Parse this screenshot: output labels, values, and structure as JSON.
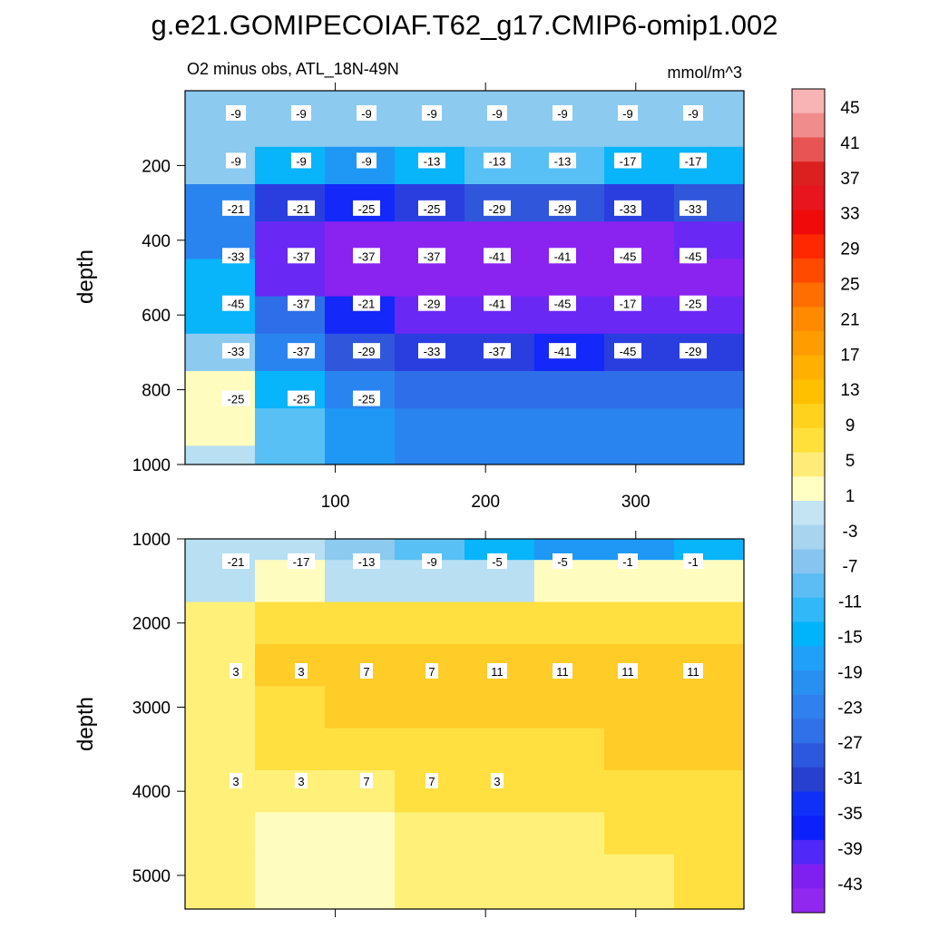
{
  "title": "g.e21.GOMIPECOIAF.T62_g17.CMIP6-omip1.002",
  "chart_data": [
    {
      "type": "heatmap",
      "subtitle": "O2 minus obs, ATL_18N-49N",
      "units": "mmol/m^3",
      "ylabel": "depth",
      "xlabel": "",
      "xlim": [
        0,
        372
      ],
      "ylim": [
        1000,
        0
      ],
      "xticks": [
        100,
        200,
        300
      ],
      "yticks": [
        200,
        400,
        600,
        800,
        1000
      ],
      "grid": false,
      "colors_note": "filled contours, 5 to -45 range in upper ocean",
      "rows": [
        {
          "depth": 100,
          "values": [
            -7,
            -8,
            -9,
            -9,
            -9,
            -9,
            -9,
            -9
          ]
        },
        {
          "depth": 200,
          "values": [
            -9,
            -17,
            -21,
            -17,
            -13,
            -13,
            -17,
            -17
          ]
        },
        {
          "depth": 300,
          "values": [
            -25,
            -37,
            -41,
            -37,
            -33,
            -33,
            -37,
            -33
          ]
        },
        {
          "depth": 400,
          "values": [
            -25,
            -45,
            -47,
            -47,
            -47,
            -47,
            -47,
            -45
          ]
        },
        {
          "depth": 500,
          "values": [
            -17,
            -45,
            -47,
            -47,
            -47,
            -47,
            -47,
            -47
          ]
        },
        {
          "depth": 600,
          "values": [
            -17,
            -29,
            -41,
            -45,
            -45,
            -45,
            -45,
            -45
          ]
        },
        {
          "depth": 700,
          "values": [
            -7,
            -25,
            -33,
            -37,
            -37,
            -41,
            -37,
            -37
          ]
        },
        {
          "depth": 800,
          "values": [
            1,
            -15,
            -25,
            -29,
            -29,
            -29,
            -29,
            -29
          ]
        },
        {
          "depth": 900,
          "values": [
            1,
            -11,
            -21,
            -25,
            -25,
            -25,
            -25,
            -25
          ]
        },
        {
          "depth": 1000,
          "values": [
            -3,
            -11,
            -19,
            -23,
            -23,
            -25,
            -25,
            -25
          ]
        }
      ],
      "contour_labels": [
        "-9",
        "-9",
        "-9",
        "-9",
        "-9",
        "-9",
        "-9",
        "-9",
        "-9",
        "-9",
        "-9",
        "-13",
        "-13",
        "-13",
        "-17",
        "-17",
        "-21",
        "-21",
        "-25",
        "-25",
        "-29",
        "-29",
        "-33",
        "-33",
        "-33",
        "-37",
        "-37",
        "-37",
        "-41",
        "-41",
        "-45",
        "-45",
        "-45",
        "-37",
        "-21",
        "-29",
        "-41",
        "-45",
        "-17",
        "-25",
        "-33",
        "-37",
        "-29",
        "-33",
        "-37",
        "-41",
        "-45",
        "-29",
        "-25",
        "-25",
        "-25"
      ]
    },
    {
      "type": "heatmap",
      "ylabel": "depth",
      "xlabel": "",
      "xlim": [
        0,
        372
      ],
      "ylim": [
        5400,
        1000
      ],
      "xticks": [
        100,
        200,
        300
      ],
      "yticks": [
        1000,
        2000,
        3000,
        4000,
        5000
      ],
      "grid": false,
      "rows": [
        {
          "depth": 1000,
          "values": [
            -3,
            -5,
            -9,
            -13,
            -17,
            -21,
            -19,
            -17
          ]
        },
        {
          "depth": 1500,
          "values": [
            -3,
            -1,
            -3,
            -5,
            -5,
            -1,
            -1,
            -1
          ]
        },
        {
          "depth": 2000,
          "values": [
            3,
            7,
            9,
            9,
            9,
            9,
            9,
            9
          ]
        },
        {
          "depth": 2500,
          "values": [
            3,
            11,
            13,
            13,
            13,
            13,
            13,
            13
          ]
        },
        {
          "depth": 3000,
          "values": [
            3,
            7,
            11,
            11,
            11,
            11,
            11,
            11
          ]
        },
        {
          "depth": 3500,
          "values": [
            3,
            7,
            7,
            9,
            9,
            9,
            11,
            11
          ]
        },
        {
          "depth": 4000,
          "values": [
            3,
            5,
            5,
            7,
            7,
            7,
            7,
            9
          ]
        },
        {
          "depth": 4500,
          "values": [
            3,
            1,
            1,
            3,
            5,
            5,
            7,
            7
          ]
        },
        {
          "depth": 5000,
          "values": [
            3,
            1,
            1,
            3,
            5,
            5,
            5,
            7
          ]
        }
      ],
      "contour_labels": [
        "-21",
        "-17",
        "-13",
        "-9",
        "-5",
        "-5",
        "-1",
        "-1",
        "3",
        "3",
        "7",
        "7",
        "11",
        "11",
        "11",
        "11",
        "3",
        "3",
        "7",
        "7",
        "3"
      ]
    }
  ],
  "colorbar": {
    "labels": [
      "45",
      "41",
      "37",
      "33",
      "29",
      "25",
      "21",
      "17",
      "13",
      "9",
      "5",
      "1",
      "-3",
      "-7",
      "-11",
      "-15",
      "-19",
      "-23",
      "-27",
      "-31",
      "-35",
      "-39",
      "-43"
    ],
    "colors": [
      "#f8b4b4",
      "#f08c8c",
      "#e85454",
      "#dc2020",
      "#e8141e",
      "#f00a0a",
      "#ff2800",
      "#ff4a00",
      "#ff6e00",
      "#ff8a00",
      "#ff9d00",
      "#ffb000",
      "#ffc000",
      "#ffd21e",
      "#ffe03a",
      "#ffec78",
      "#ffffc4",
      "#c4e4f4",
      "#a8d4f0",
      "#88c4f0",
      "#5cbcf4",
      "#30b8f8",
      "#00b4fc",
      "#20a0f8",
      "#2890f0",
      "#3080f0",
      "#3070e8",
      "#2c58e0",
      "#2840d0",
      "#1030f8",
      "#0c20fc",
      "#5028f8",
      "#8020f0",
      "#9028f0"
    ]
  }
}
